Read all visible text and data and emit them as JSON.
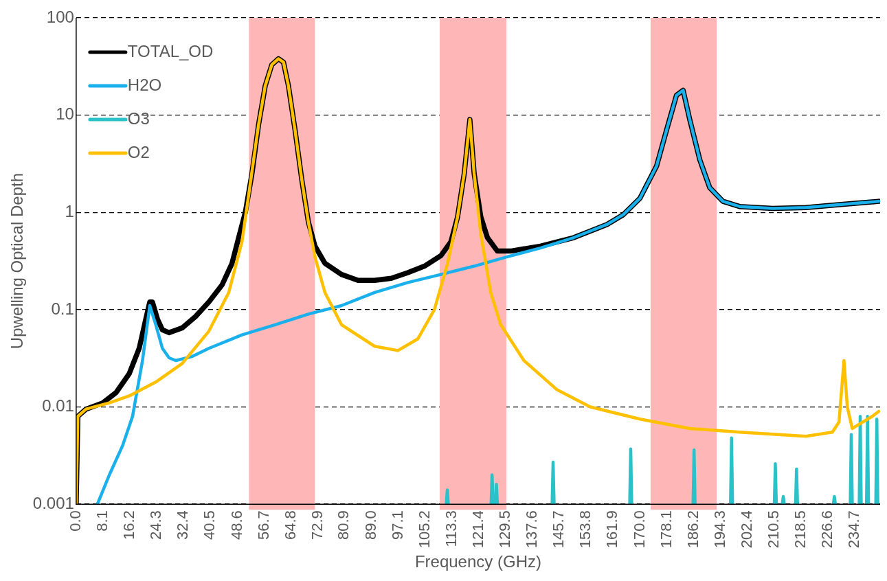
{
  "chart_data": {
    "type": "line",
    "xlabel": "Frequency (GHz)",
    "ylabel": "Upwelling Optical Depth",
    "log": "y",
    "grid": "y",
    "legend": "top left",
    "marker": "none",
    "line_style": "solid",
    "xlim": [
      0,
      242.4
    ],
    "ylim": [
      0.001,
      100
    ],
    "yticks": [
      0.001,
      0.01,
      0.1,
      1,
      10,
      100
    ],
    "xticks": [
      {
        "value": 0,
        "label": "0.0"
      },
      8.1,
      16.2,
      24.3,
      32.4,
      40.5,
      48.6,
      56.7,
      64.8,
      72.9,
      80.9,
      {
        "value": 89,
        "label": "89.0"
      },
      97.1,
      105.2,
      113.3,
      121.4,
      129.5,
      137.6,
      145.7,
      153.8,
      161.9,
      {
        "value": 170,
        "label": "170.0"
      },
      178.1,
      186.2,
      194.3,
      202.4,
      210.5,
      218.5,
      226.6,
      234.7
    ],
    "bands": [
      {
        "axis": "x",
        "from": 52.1,
        "to": 72.0,
        "color": "#ffb6b6"
      },
      {
        "axis": "x",
        "from": 109.6,
        "to": 129.7,
        "color": "#ffb6b6"
      },
      {
        "axis": "x",
        "from": 173.2,
        "to": 193.1,
        "color": "#ffb6b6"
      }
    ],
    "series": [
      {
        "name": "TOTAL_OD",
        "color": "#000000",
        "x": [
          0,
          0.5,
          3,
          8,
          12,
          16,
          19,
          21,
          22.2,
          23,
          24.5,
          26,
          28,
          32,
          36,
          40,
          44,
          47,
          49,
          51,
          53,
          55,
          57,
          59,
          61,
          62.5,
          64,
          66,
          68,
          70,
          72,
          75,
          80,
          85,
          90,
          95,
          100,
          105,
          110,
          113,
          115,
          117,
          118.7,
          120,
          122,
          124,
          127,
          131,
          140,
          150,
          160,
          165,
          170,
          175,
          178,
          181,
          183,
          185,
          188,
          191,
          195,
          200,
          210,
          220,
          230,
          242
        ],
        "values": [
          0.001,
          0.008,
          0.0095,
          0.011,
          0.014,
          0.022,
          0.04,
          0.08,
          0.12,
          0.12,
          0.08,
          0.062,
          0.058,
          0.065,
          0.085,
          0.12,
          0.18,
          0.3,
          0.55,
          1.0,
          2.5,
          8,
          20,
          33,
          38,
          35,
          20,
          7,
          2.2,
          0.8,
          0.45,
          0.3,
          0.23,
          0.2,
          0.2,
          0.21,
          0.24,
          0.28,
          0.36,
          0.5,
          0.9,
          2.5,
          9,
          2.5,
          0.9,
          0.55,
          0.4,
          0.4,
          0.45,
          0.55,
          0.75,
          0.95,
          1.4,
          3,
          7,
          16,
          18,
          9,
          3.5,
          1.8,
          1.3,
          1.15,
          1.1,
          1.12,
          1.2,
          1.3
        ]
      },
      {
        "name": "H2O",
        "color": "#1ab0ec",
        "x": [
          6.4,
          10,
          14,
          17,
          20,
          22.2,
          24,
          26,
          28,
          30,
          35,
          40,
          50,
          60,
          70,
          80,
          90,
          100,
          110,
          120,
          130,
          140,
          150,
          160,
          165,
          170,
          175,
          178,
          181,
          183,
          185,
          188,
          191,
          195,
          200,
          210,
          220,
          230,
          242
        ],
        "values": [
          0.001,
          0.002,
          0.004,
          0.008,
          0.03,
          0.11,
          0.07,
          0.04,
          0.032,
          0.03,
          0.033,
          0.04,
          0.055,
          0.07,
          0.09,
          0.11,
          0.15,
          0.19,
          0.23,
          0.28,
          0.35,
          0.43,
          0.55,
          0.75,
          0.95,
          1.4,
          3,
          7,
          16,
          18,
          9,
          3.5,
          1.8,
          1.3,
          1.15,
          1.1,
          1.12,
          1.2,
          1.3
        ]
      },
      {
        "name": "O3",
        "color": "#2bc1c8",
        "x": [
          111.6,
          111.9,
          112.2,
          112.3,
          125.1,
          125.4,
          125.7,
          125.8,
          126.4,
          126.7,
          127,
          127.1,
          143.5,
          143.8,
          144.1,
          144.2,
          166.9,
          167.2,
          167.5,
          167.6,
          186,
          186.3,
          186.6,
          186.7,
          197.3,
          197.6,
          197.9,
          198,
          210.5,
          210.8,
          211.1,
          211.2,
          212.9,
          213.2,
          213.5,
          213.6,
          216.9,
          217.2,
          217.5,
          217.6,
          228.3,
          228.6,
          228.9,
          229,
          233.4,
          233.7,
          234,
          234.1,
          236.1,
          236.4,
          236.7,
          236.8,
          238.3,
          238.6,
          238.9,
          239,
          241.1,
          241.4,
          241.7
        ],
        "values": [
          0.001,
          0.0014,
          0.001,
          null,
          0.001,
          0.002,
          0.001,
          null,
          0.001,
          0.0016,
          0.001,
          null,
          0.001,
          0.0027,
          0.001,
          null,
          0.001,
          0.0037,
          0.001,
          null,
          0.001,
          0.0036,
          0.001,
          null,
          0.001,
          0.0048,
          0.001,
          null,
          0.001,
          0.0026,
          0.001,
          null,
          0.001,
          0.0012,
          0.001,
          null,
          0.001,
          0.0023,
          0.001,
          null,
          0.001,
          0.0012,
          0.001,
          null,
          0.001,
          0.0052,
          0.001,
          null,
          0.001,
          0.008,
          0.001,
          null,
          0.001,
          0.008,
          0.001,
          null,
          0.001,
          0.0075,
          0.001
        ]
      },
      {
        "name": "O2",
        "color": "#ffc000",
        "x": [
          0,
          0.5,
          3,
          10,
          16,
          24,
          32,
          40,
          46,
          50,
          52,
          55,
          57,
          59,
          61,
          62.5,
          64,
          66,
          68,
          70,
          72,
          75,
          80,
          90,
          97,
          103,
          108,
          112,
          115,
          117,
          118.7,
          120,
          122,
          125,
          128,
          135,
          145,
          155,
          170,
          185,
          200,
          220,
          228,
          230,
          231.5,
          232.5,
          234,
          240,
          242
        ],
        "values": [
          0.001,
          0.008,
          0.0095,
          0.011,
          0.013,
          0.018,
          0.028,
          0.06,
          0.15,
          0.5,
          1.5,
          8,
          20,
          33,
          38,
          35,
          20,
          7,
          2.2,
          0.8,
          0.35,
          0.15,
          0.07,
          0.042,
          0.038,
          0.05,
          0.1,
          0.3,
          0.9,
          2.5,
          9,
          2.5,
          0.6,
          0.15,
          0.07,
          0.03,
          0.015,
          0.01,
          0.0075,
          0.006,
          0.0055,
          0.005,
          0.0055,
          0.007,
          0.03,
          0.01,
          0.006,
          0.008,
          0.009
        ]
      }
    ]
  }
}
